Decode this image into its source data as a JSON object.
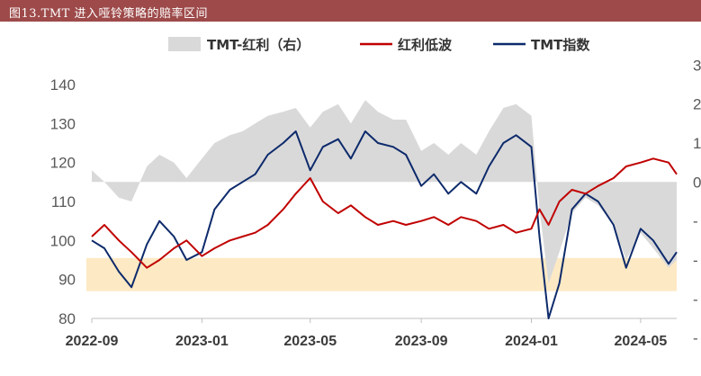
{
  "header": {
    "title": "图13.TMT 进入哑铃策略的赔率区间"
  },
  "chart_data": {
    "type": "line",
    "legend": [
      {
        "name": "TMT-红利（右）",
        "kind": "area",
        "color": "#d9d9d9"
      },
      {
        "name": "红利低波",
        "kind": "line",
        "color": "#c00000"
      },
      {
        "name": "TMT指数",
        "kind": "line",
        "color": "#0d2a6b"
      }
    ],
    "legend_position": "top",
    "x_ticks": [
      "2022-09",
      "2023-01",
      "2023-05",
      "2023-09",
      "2024-01",
      "2024-05"
    ],
    "x_range": [
      "2022-09-01",
      "2024-06-10"
    ],
    "y_left": {
      "ticks": [
        "80",
        "90",
        "100",
        "110",
        "120",
        "130",
        "140"
      ],
      "range": [
        80,
        140
      ]
    },
    "y_right": {
      "ticks": [
        "3",
        "2",
        "1",
        "0",
        "-",
        "-",
        "-",
        "-"
      ],
      "range": [
        -3.5,
        2.5
      ]
    },
    "highlight_band": {
      "axis": "left",
      "from": 87,
      "to": 95.5,
      "color": "#fde9c4"
    },
    "zero_line_left_value": 113.5,
    "series": [
      {
        "name": "TMT指数",
        "color": "#0d2a6b",
        "x": [
          "2022-09-01",
          "2022-09-15",
          "2022-10-01",
          "2022-10-15",
          "2022-11-01",
          "2022-11-15",
          "2022-12-01",
          "2022-12-15",
          "2023-01-01",
          "2023-01-15",
          "2023-02-01",
          "2023-02-15",
          "2023-03-01",
          "2023-03-15",
          "2023-04-01",
          "2023-04-15",
          "2023-05-01",
          "2023-05-15",
          "2023-06-01",
          "2023-06-15",
          "2023-07-01",
          "2023-07-15",
          "2023-08-01",
          "2023-08-15",
          "2023-09-01",
          "2023-09-15",
          "2023-10-01",
          "2023-10-15",
          "2023-11-01",
          "2023-11-15",
          "2023-12-01",
          "2023-12-15",
          "2024-01-01",
          "2024-01-10",
          "2024-01-20",
          "2024-02-01",
          "2024-02-15",
          "2024-03-01",
          "2024-03-15",
          "2024-04-01",
          "2024-04-15",
          "2024-05-01",
          "2024-05-15",
          "2024-06-01",
          "2024-06-10"
        ],
        "y": [
          100,
          98,
          92,
          88,
          99,
          105,
          101,
          95,
          97,
          108,
          113,
          115,
          117,
          122,
          125,
          128,
          118,
          124,
          126,
          121,
          128,
          125,
          124,
          122,
          114,
          117,
          112,
          115,
          112,
          119,
          125,
          127,
          124,
          101,
          80,
          89,
          108,
          112,
          110,
          104,
          93,
          103,
          100,
          94,
          97
        ]
      },
      {
        "name": "红利低波",
        "color": "#c00000",
        "x": [
          "2022-09-01",
          "2022-09-15",
          "2022-10-01",
          "2022-10-15",
          "2022-11-01",
          "2022-11-15",
          "2022-12-01",
          "2022-12-15",
          "2023-01-01",
          "2023-01-15",
          "2023-02-01",
          "2023-02-15",
          "2023-03-01",
          "2023-03-15",
          "2023-04-01",
          "2023-04-15",
          "2023-05-01",
          "2023-05-15",
          "2023-06-01",
          "2023-06-15",
          "2023-07-01",
          "2023-07-15",
          "2023-08-01",
          "2023-08-15",
          "2023-09-01",
          "2023-09-15",
          "2023-10-01",
          "2023-10-15",
          "2023-11-01",
          "2023-11-15",
          "2023-12-01",
          "2023-12-15",
          "2024-01-01",
          "2024-01-10",
          "2024-01-20",
          "2024-02-01",
          "2024-02-15",
          "2024-03-01",
          "2024-03-15",
          "2024-04-01",
          "2024-04-15",
          "2024-05-01",
          "2024-05-15",
          "2024-06-01",
          "2024-06-10"
        ],
        "y": [
          101,
          104,
          100,
          97,
          93,
          95,
          98,
          100,
          96,
          98,
          100,
          101,
          102,
          104,
          108,
          112,
          116,
          110,
          107,
          109,
          106,
          104,
          105,
          104,
          105,
          106,
          104,
          106,
          105,
          103,
          104,
          102,
          103,
          108,
          104,
          110,
          113,
          112,
          114,
          116,
          119,
          120,
          121,
          120,
          117
        ]
      },
      {
        "name": "TMT-红利（右）",
        "color": "#d9d9d9",
        "x": [
          "2022-09-01",
          "2022-09-15",
          "2022-10-01",
          "2022-10-15",
          "2022-11-01",
          "2022-11-15",
          "2022-12-01",
          "2022-12-15",
          "2023-01-01",
          "2023-01-15",
          "2023-02-01",
          "2023-02-15",
          "2023-03-01",
          "2023-03-15",
          "2023-04-01",
          "2023-04-15",
          "2023-05-01",
          "2023-05-15",
          "2023-06-01",
          "2023-06-15",
          "2023-07-01",
          "2023-07-15",
          "2023-08-01",
          "2023-08-15",
          "2023-09-01",
          "2023-09-15",
          "2023-10-01",
          "2023-10-15",
          "2023-11-01",
          "2023-11-15",
          "2023-12-01",
          "2023-12-15",
          "2024-01-01",
          "2024-01-10",
          "2024-01-20",
          "2024-02-01",
          "2024-02-15",
          "2024-03-01",
          "2024-03-15",
          "2024-04-01",
          "2024-04-15",
          "2024-05-01",
          "2024-05-15",
          "2024-06-01",
          "2024-06-10"
        ],
        "y": [
          0.3,
          0.0,
          -0.4,
          -0.5,
          0.4,
          0.7,
          0.5,
          0.1,
          0.6,
          1.0,
          1.2,
          1.3,
          1.5,
          1.7,
          1.8,
          1.9,
          1.4,
          1.8,
          2.0,
          1.5,
          2.1,
          1.8,
          1.6,
          1.6,
          0.8,
          1.0,
          0.7,
          1.0,
          0.7,
          1.3,
          1.9,
          2.0,
          1.7,
          -0.7,
          -2.6,
          -1.8,
          -0.8,
          -0.4,
          -0.6,
          -1.1,
          -2.0,
          -1.3,
          -1.7,
          -2.2,
          -2.0
        ]
      }
    ]
  }
}
